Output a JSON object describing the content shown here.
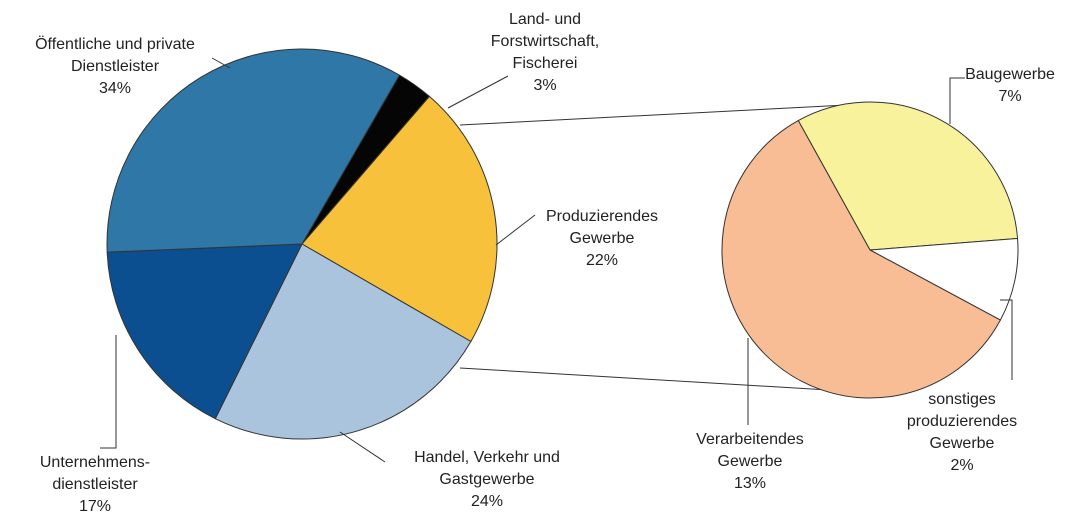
{
  "chart_data": {
    "type": "pie-of-pie",
    "categories": [
      [
        "Land- und",
        "Forstwirtschaft,",
        "Fischerei"
      ],
      [
        "Produzierendes",
        "Gewerbe"
      ],
      [
        "Handel, Verkehr und",
        "Gastgewerbe"
      ],
      [
        "Unternehmens-",
        "dienstleister"
      ],
      [
        "Öffentliche und private",
        "Dienstleister"
      ]
    ],
    "values": [
      3,
      22,
      24,
      17,
      34
    ],
    "value_labels": [
      "3%",
      "22%",
      "24%",
      "17%",
      "34%"
    ],
    "colors": [
      "#050505",
      "#f8c13c",
      "#a9c4dc",
      "#0c4f91",
      "#2e77a6"
    ],
    "breakdown": {
      "categories": [
        [
          "Baugewerbe"
        ],
        [
          "sonstiges",
          "produzierendes",
          "Gewerbe"
        ],
        [
          "Verarbeitendes",
          "Gewerbe"
        ]
      ],
      "values": [
        7,
        2,
        13
      ],
      "value_labels": [
        "7%",
        "2%",
        "13%"
      ],
      "colors": [
        "#f8f29c",
        "#ffffff",
        "#f8bd94"
      ]
    }
  }
}
